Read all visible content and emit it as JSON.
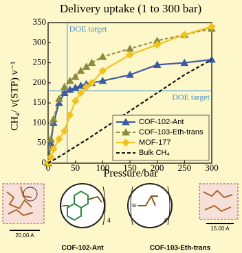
{
  "chart_data": {
    "type": "line",
    "title": "Delivery uptake (1 to 300 bar)",
    "x_label": "Pressure/bar",
    "y_label": "CH₄/ v(STP) v⁻¹",
    "x": [
      0,
      5,
      10,
      20,
      30,
      40,
      50,
      60,
      70,
      80,
      100,
      150,
      200,
      250,
      300
    ],
    "series": [
      {
        "name": "COF-102-Ant",
        "color": "#3b5aa6",
        "marker": "triangle",
        "linestyle": "solid",
        "values": [
          0,
          50,
          100,
          150,
          175,
          183,
          188,
          193,
          197,
          200,
          205,
          220,
          245,
          250,
          258
        ]
      },
      {
        "name": "COF-103-Eth-trans",
        "color": "#8c8a3c",
        "marker": "triangle",
        "linestyle": "dashed",
        "values": [
          0,
          60,
          110,
          160,
          190,
          205,
          215,
          230,
          240,
          250,
          265,
          285,
          305,
          320,
          335
        ]
      },
      {
        "name": "MOF-177",
        "color": "#f2c21e",
        "marker": "diamond",
        "linestyle": "solid",
        "values": [
          0,
          15,
          35,
          60,
          80,
          120,
          155,
          175,
          190,
          200,
          230,
          270,
          295,
          320,
          340
        ]
      },
      {
        "name": "Bulk CH₄",
        "color": "#111111",
        "linestyle": "dashed",
        "values": [
          0,
          4,
          8,
          16,
          24,
          33,
          41,
          50,
          58,
          67,
          85,
          130,
          175,
          220,
          258
        ]
      }
    ],
    "xlim": [
      0,
      300
    ],
    "ylim": [
      0,
      350
    ],
    "xticks": [
      0,
      50,
      100,
      150,
      200,
      250,
      300
    ],
    "yticks": [
      0,
      50,
      100,
      150,
      200,
      250,
      300,
      350
    ],
    "legend": "lower right",
    "annotations": [
      {
        "text": "DOE target",
        "x": 35,
        "color": "#3a8fd0"
      },
      {
        "text": "DOE target",
        "y": 180,
        "color": "#3a8fd0"
      }
    ]
  },
  "figure_labels": {
    "left_scale": "20.00 A",
    "right_scale": "15.00 A",
    "left_caption": "COF-102-Ant",
    "right_caption": "COF-103-Eth-trans",
    "left_subscript": "4",
    "right_subscript": "4",
    "left_atom": "C",
    "right_atom": "Si"
  }
}
